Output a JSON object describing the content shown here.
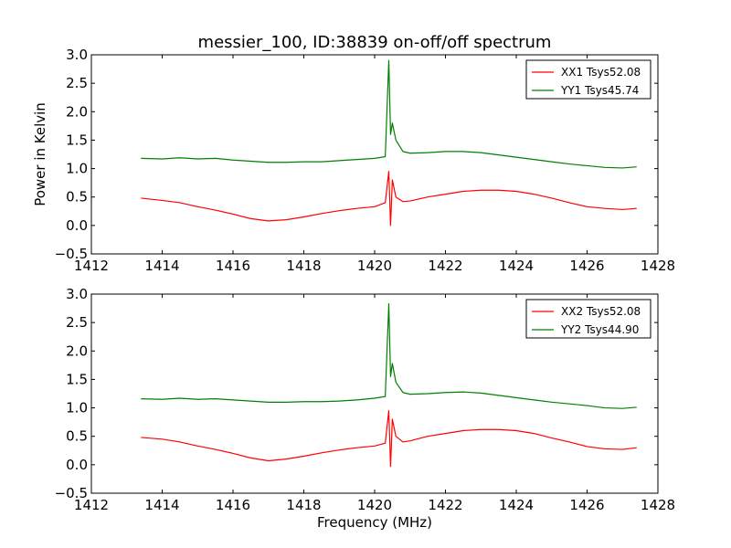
{
  "figure": {
    "title": "messier_100, ID:38839 on-off/off spectrum",
    "xlabel": "Frequency (MHz)",
    "ylabel": "Power in Kelvin"
  },
  "chart_data": [
    {
      "type": "line",
      "title": "messier_100, ID:38839 on-off/off spectrum",
      "xlabel": "",
      "ylabel": "Power in Kelvin",
      "xlim": [
        1412,
        1428
      ],
      "ylim": [
        -0.5,
        3.0
      ],
      "xticks": [
        "1412",
        "1414",
        "1416",
        "1418",
        "1420",
        "1422",
        "1424",
        "1426",
        "1428"
      ],
      "yticks": [
        "−0.5",
        "0.0",
        "0.5",
        "1.0",
        "1.5",
        "2.0",
        "2.5",
        "3.0"
      ],
      "grid": false,
      "legend_position": "top-right",
      "x": [
        1413.4,
        1414.0,
        1414.5,
        1415.0,
        1415.5,
        1416.0,
        1416.5,
        1417.0,
        1417.5,
        1418.0,
        1418.5,
        1419.0,
        1419.5,
        1420.0,
        1420.3,
        1420.4,
        1420.45,
        1420.5,
        1420.6,
        1420.8,
        1421.0,
        1421.5,
        1422.0,
        1422.5,
        1423.0,
        1423.5,
        1424.0,
        1424.5,
        1425.0,
        1425.5,
        1426.0,
        1426.5,
        1427.0,
        1427.4
      ],
      "series": [
        {
          "name": "XX1 Tsys52.08",
          "color": "#ff0000",
          "values": [
            0.48,
            0.44,
            0.4,
            0.33,
            0.27,
            0.2,
            0.12,
            0.08,
            0.1,
            0.15,
            0.21,
            0.26,
            0.3,
            0.33,
            0.4,
            0.95,
            0.0,
            0.8,
            0.5,
            0.42,
            0.43,
            0.5,
            0.55,
            0.6,
            0.62,
            0.62,
            0.6,
            0.55,
            0.48,
            0.4,
            0.33,
            0.3,
            0.28,
            0.3
          ]
        },
        {
          "name": "YY1 Tsys45.74",
          "color": "#008000",
          "values": [
            1.18,
            1.17,
            1.19,
            1.17,
            1.18,
            1.15,
            1.13,
            1.11,
            1.11,
            1.12,
            1.12,
            1.14,
            1.16,
            1.18,
            1.21,
            2.9,
            1.6,
            1.8,
            1.5,
            1.3,
            1.27,
            1.28,
            1.3,
            1.3,
            1.28,
            1.24,
            1.2,
            1.16,
            1.12,
            1.08,
            1.05,
            1.02,
            1.01,
            1.03
          ]
        }
      ]
    },
    {
      "type": "line",
      "title": "",
      "xlabel": "Frequency (MHz)",
      "ylabel": "",
      "xlim": [
        1412,
        1428
      ],
      "ylim": [
        -0.5,
        3.0
      ],
      "xticks": [
        "1412",
        "1414",
        "1416",
        "1418",
        "1420",
        "1422",
        "1424",
        "1426",
        "1428"
      ],
      "yticks": [
        "−0.5",
        "0.0",
        "0.5",
        "1.0",
        "1.5",
        "2.0",
        "2.5",
        "3.0"
      ],
      "grid": false,
      "legend_position": "top-right",
      "x": [
        1413.4,
        1414.0,
        1414.5,
        1415.0,
        1415.5,
        1416.0,
        1416.5,
        1417.0,
        1417.5,
        1418.0,
        1418.5,
        1419.0,
        1419.5,
        1420.0,
        1420.3,
        1420.4,
        1420.45,
        1420.5,
        1420.6,
        1420.8,
        1421.0,
        1421.5,
        1422.0,
        1422.5,
        1423.0,
        1423.5,
        1424.0,
        1424.5,
        1425.0,
        1425.5,
        1426.0,
        1426.5,
        1427.0,
        1427.4
      ],
      "series": [
        {
          "name": "XX2 Tsys52.08",
          "color": "#ff0000",
          "values": [
            0.48,
            0.45,
            0.4,
            0.33,
            0.27,
            0.2,
            0.12,
            0.07,
            0.1,
            0.15,
            0.21,
            0.26,
            0.3,
            0.33,
            0.38,
            0.95,
            -0.03,
            0.8,
            0.5,
            0.4,
            0.42,
            0.5,
            0.55,
            0.6,
            0.62,
            0.62,
            0.6,
            0.55,
            0.47,
            0.4,
            0.32,
            0.28,
            0.27,
            0.3
          ]
        },
        {
          "name": "YY2 Tsys44.90",
          "color": "#008000",
          "values": [
            1.16,
            1.15,
            1.17,
            1.15,
            1.16,
            1.14,
            1.12,
            1.1,
            1.1,
            1.11,
            1.11,
            1.12,
            1.14,
            1.17,
            1.2,
            2.83,
            1.55,
            1.78,
            1.45,
            1.27,
            1.24,
            1.25,
            1.27,
            1.28,
            1.26,
            1.22,
            1.18,
            1.14,
            1.1,
            1.07,
            1.04,
            1.0,
            0.99,
            1.01
          ]
        }
      ]
    }
  ]
}
